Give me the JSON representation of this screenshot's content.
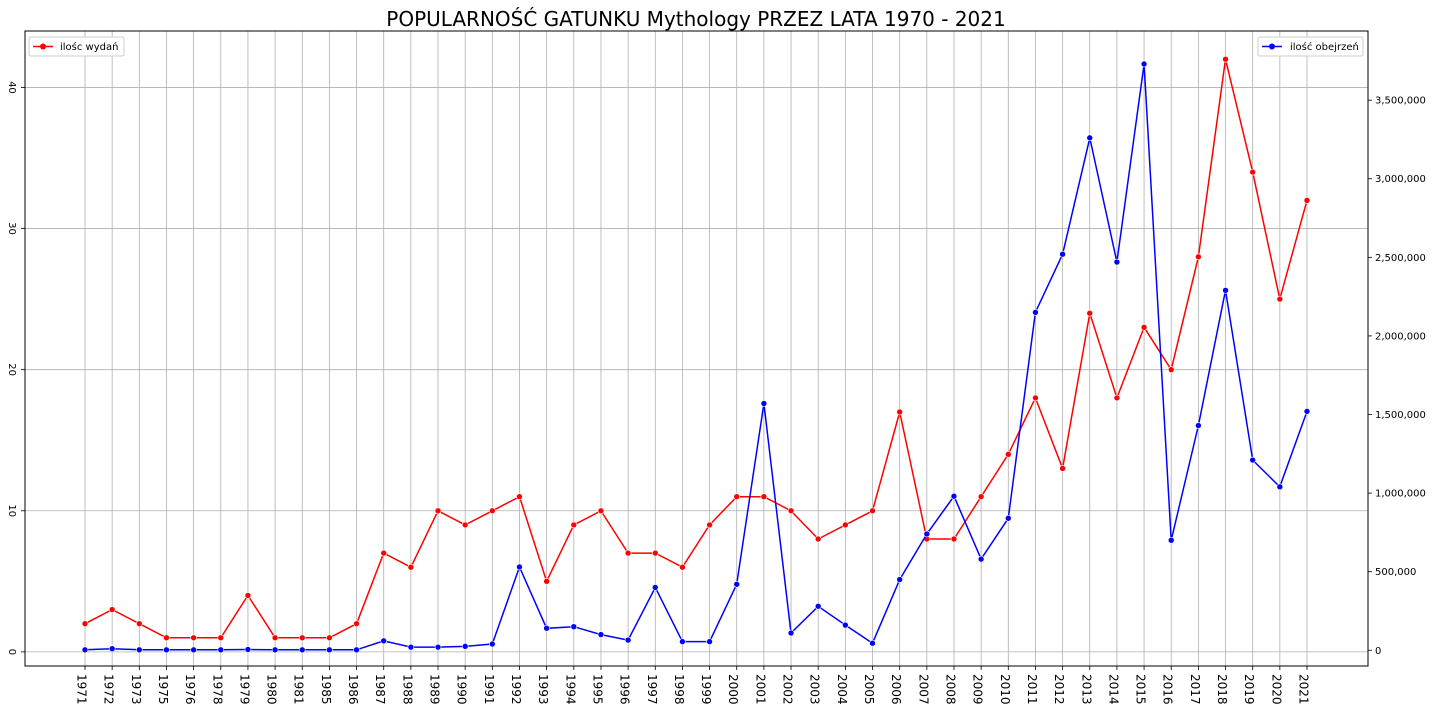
{
  "chart_data": {
    "type": "line",
    "title": "POPULARNOŚĆ GATUNKU Mythology PRZEZ LATA 1970 - 2021",
    "xlabel": "",
    "ylabel": "",
    "grid": true,
    "categories": [
      "1971",
      "1972",
      "1973",
      "1975",
      "1976",
      "1978",
      "1979",
      "1980",
      "1981",
      "1985",
      "1986",
      "1987",
      "1988",
      "1989",
      "1990",
      "1991",
      "1992",
      "1993",
      "1994",
      "1995",
      "1996",
      "1997",
      "1998",
      "1999",
      "2000",
      "2001",
      "2002",
      "2003",
      "2004",
      "2005",
      "2006",
      "2007",
      "2008",
      "2009",
      "2010",
      "2011",
      "2012",
      "2013",
      "2014",
      "2015",
      "2016",
      "2017",
      "2018",
      "2019",
      "2020",
      "2021"
    ],
    "left_axis": {
      "ylim": [
        -1,
        44
      ],
      "ticks": [
        0,
        10,
        20,
        30,
        40
      ],
      "tick_labels": [
        "0",
        "10",
        "20",
        "30",
        "40"
      ]
    },
    "right_axis": {
      "ylim": [
        -100000,
        3940000
      ],
      "ticks": [
        0,
        500000,
        1000000,
        1500000,
        2000000,
        2500000,
        3000000,
        3500000
      ],
      "tick_labels": [
        "0",
        "500,000",
        "1,000,000",
        "1,500,000",
        "2,000,000",
        "2,500,000",
        "3,000,000",
        "3,500,000"
      ]
    },
    "series": [
      {
        "name": "ilośc wydań",
        "axis": "left",
        "color": "#ff0000",
        "legend": "top-left",
        "values": [
          2,
          3,
          2,
          1,
          1,
          1,
          4,
          1,
          1,
          1,
          2,
          7,
          6,
          10,
          9,
          10,
          11,
          5,
          9,
          10,
          7,
          7,
          6,
          9,
          11,
          11,
          10,
          8,
          9,
          10,
          17,
          8,
          8,
          11,
          14,
          18,
          13,
          24,
          18,
          23,
          20,
          28,
          42,
          34,
          25,
          32
        ]
      },
      {
        "name": "ilość obejrzeń",
        "axis": "right",
        "color": "#0000ff",
        "legend": "top-right",
        "values": [
          3000,
          10000,
          3000,
          3000,
          3000,
          3000,
          5000,
          3000,
          3000,
          3000,
          3000,
          60000,
          20000,
          20000,
          25000,
          40000,
          530000,
          140000,
          150000,
          100000,
          65000,
          400000,
          55000,
          55000,
          420000,
          1570000,
          110000,
          280000,
          160000,
          45000,
          450000,
          740000,
          980000,
          580000,
          840000,
          2150000,
          2520000,
          3260000,
          2470000,
          3730000,
          700000,
          1430000,
          2290000,
          1210000,
          1040000,
          1520000
        ]
      }
    ]
  }
}
